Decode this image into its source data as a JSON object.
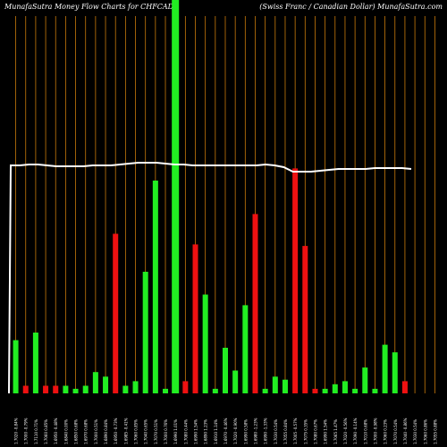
{
  "header": {
    "title_left": "MunafaSutra  Money Flow  Charts for CHFCAD",
    "title_right": "(Swiss Franc / Canadian  Dollar) MunafaSutra.com"
  },
  "colors": {
    "background": "#000000",
    "up": "#22ee22",
    "down": "#ee1111",
    "grid": "#c87a0a",
    "price_line": "#ffffff"
  },
  "chart_data": {
    "type": "bar",
    "title": "MunafaSutra  Money Flow  Charts for CHFCAD",
    "subtitle": "(Swiss Franc / Canadian  Dollar) MunafaSutra.com",
    "categories": [
      "1.7020 -0.84%",
      "1.7000 -0.79%",
      "1.7110 0.71%",
      "1.7060 0.85%",
      "1.6950 -0.48%",
      "1.6840 0.00%",
      "1.6850 0.68%",
      "1.6970 0.68%",
      "1.7000 0.51%",
      "1.6890 0.84%",
      "1.6950 -0.73%",
      "1.6985 -0.41%",
      "1.7060 0.85%",
      "1.7040 0.65%",
      "1.7070 0.51%",
      "1.7000 0.76%",
      "1.6990 1.01%",
      "1.7080 0.44%",
      "1.6990 1.54%",
      "1.6890 1.23%",
      "1.6910 1.14%",
      "1.6970 -0.46%",
      "1.7020 -0.90%",
      "1.6990 0.58%",
      "1.6980 -1.23%",
      "1.6990 -1.33%",
      "1.7030 0.54%",
      "1.7055 0.84%",
      "1.7005 -0.57%",
      "1.7075 0.35%",
      "1.7080 0.67%",
      "1.6990 1.54%",
      "1.7065 1.47%",
      "1.7020 -0.56%",
      "1.7090 -0.14%",
      "1.7010 0.68%",
      "1.7000 -0.98%",
      "1.7060 0.23%",
      "1.7070 0.54%",
      "1.7040 -0.86%",
      "1.7030 0.54%",
      "1.7060 0.86%",
      "1.7055 0.88%"
    ],
    "series": [
      {
        "values": [
          35,
          5,
          40,
          5,
          5,
          5,
          3,
          5,
          14,
          11,
          105,
          5,
          8,
          80,
          140,
          3,
          270,
          8,
          98,
          65,
          3,
          30,
          15,
          58,
          118,
          3,
          11,
          9,
          148,
          97,
          3,
          3,
          6,
          8,
          3,
          17,
          3,
          32,
          27,
          8,
          0,
          0,
          0
        ],
        "directions": [
          "up",
          "down",
          "up",
          "down",
          "down",
          "up",
          "up",
          "up",
          "up",
          "up",
          "down",
          "up",
          "up",
          "up",
          "up",
          "up",
          "up",
          "down",
          "down",
          "up",
          "up",
          "up",
          "up",
          "up",
          "down",
          "up",
          "up",
          "up",
          "down",
          "down",
          "down",
          "up",
          "up",
          "up",
          "up",
          "up",
          "up",
          "up",
          "up",
          "down",
          "up",
          "up",
          "up"
        ]
      }
    ],
    "price_line": [
      187,
      187,
      186,
      186,
      187,
      188,
      188,
      188,
      188,
      187,
      187,
      187,
      186,
      185,
      184,
      184,
      184,
      185,
      186,
      186,
      187,
      187,
      187,
      187,
      187,
      187,
      187,
      187,
      186,
      187,
      189,
      194,
      194,
      194,
      193,
      192,
      191,
      191,
      191,
      191,
      190,
      190,
      190,
      190,
      191
    ],
    "price_line_start": 440,
    "ylim": [
      0,
      275
    ],
    "grid": true
  }
}
